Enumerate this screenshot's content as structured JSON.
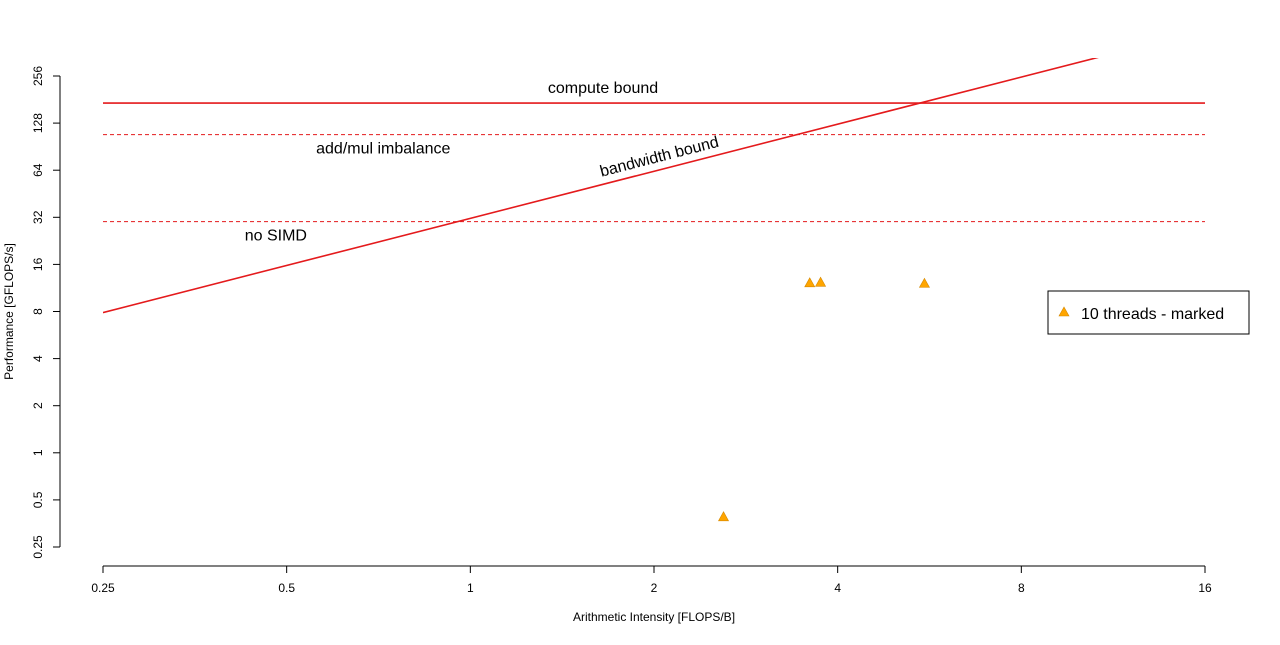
{
  "chart_data": {
    "type": "scatter",
    "title": "",
    "xlabel": "Arithmetic Intensity [FLOPS/B]",
    "ylabel": "Performance [GFLOPS/s]",
    "x_scale": "log2",
    "y_scale": "log2",
    "xlim": [
      0.25,
      16
    ],
    "ylim": [
      0.25,
      256
    ],
    "x_ticks": [
      "0.25",
      "0.5",
      "1",
      "2",
      "4",
      "8",
      "16"
    ],
    "y_ticks": [
      "0.25",
      "0.5",
      "1",
      "2",
      "4",
      "8",
      "16",
      "32",
      "64",
      "128",
      "256"
    ],
    "grid": false,
    "roofline": {
      "compute_bound": {
        "label": "compute bound",
        "gflops": 172,
        "color": "#e41a1c"
      },
      "bandwidth_bound": {
        "label": "bandwidth bound",
        "bandwidth_gbs": 31.5,
        "color": "#e41a1c"
      },
      "ceilings": [
        {
          "label": "add/mul imbalance",
          "gflops": 108,
          "color": "#e41a1c"
        },
        {
          "label": "no SIMD",
          "gflops": 30,
          "color": "#e41a1c"
        }
      ]
    },
    "series": [
      {
        "name": "10 threads - marked",
        "marker": "triangle",
        "color": "#ffa500",
        "points": [
          {
            "x": 2.6,
            "y": 0.39
          },
          {
            "x": 3.6,
            "y": 12.2
          },
          {
            "x": 3.75,
            "y": 12.3
          },
          {
            "x": 5.55,
            "y": 12.1
          }
        ]
      }
    ],
    "legend_position": "right"
  }
}
